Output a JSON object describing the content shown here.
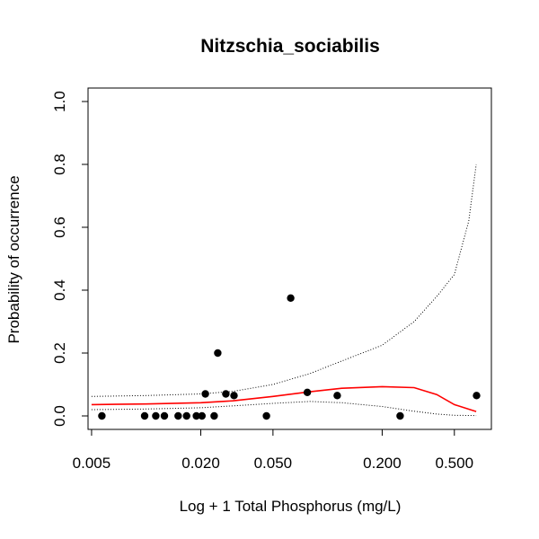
{
  "chart_data": {
    "type": "scatter",
    "title": "Nitzschia_sociabilis",
    "xlabel": "Log + 1 Total Phosphorus (mg/L)",
    "ylabel": "Probability of occurrence",
    "x_scale": "log",
    "xlim": [
      0.005,
      0.8
    ],
    "ylim": [
      0,
      1
    ],
    "x_ticks": [
      {
        "value": 0.005,
        "label": "0.005"
      },
      {
        "value": 0.02,
        "label": "0.020"
      },
      {
        "value": 0.05,
        "label": "0.050"
      },
      {
        "value": 0.2,
        "label": "0.200"
      },
      {
        "value": 0.5,
        "label": "0.500"
      }
    ],
    "y_ticks": [
      {
        "value": 0,
        "label": "0.0"
      },
      {
        "value": 0.2,
        "label": "0.2"
      },
      {
        "value": 0.4,
        "label": "0.4"
      },
      {
        "value": 0.6,
        "label": "0.6"
      },
      {
        "value": 0.8,
        "label": "0.8"
      },
      {
        "value": 1.0,
        "label": "1.0"
      }
    ],
    "grid": false,
    "colors": {
      "fit": "#ff0000",
      "points": "#000000",
      "bounds": "#000000"
    },
    "points": [
      {
        "x": 0.0057,
        "y": 0
      },
      {
        "x": 0.0098,
        "y": 0
      },
      {
        "x": 0.0113,
        "y": 0
      },
      {
        "x": 0.0126,
        "y": 0
      },
      {
        "x": 0.015,
        "y": 0
      },
      {
        "x": 0.0167,
        "y": 0
      },
      {
        "x": 0.0189,
        "y": 0
      },
      {
        "x": 0.0203,
        "y": 0
      },
      {
        "x": 0.0237,
        "y": 0
      },
      {
        "x": 0.046,
        "y": 0
      },
      {
        "x": 0.251,
        "y": 0
      },
      {
        "x": 0.0212,
        "y": 0.07
      },
      {
        "x": 0.0248,
        "y": 0.2
      },
      {
        "x": 0.0275,
        "y": 0.07
      },
      {
        "x": 0.0305,
        "y": 0.065
      },
      {
        "x": 0.0626,
        "y": 0.375
      },
      {
        "x": 0.0773,
        "y": 0.075
      },
      {
        "x": 0.113,
        "y": 0.065
      },
      {
        "x": 0.663,
        "y": 0.065
      }
    ],
    "series": [
      {
        "role": "fit",
        "x": [
          0.005,
          0.01,
          0.02,
          0.03,
          0.05,
          0.08,
          0.12,
          0.2,
          0.3,
          0.4,
          0.5,
          0.66
        ],
        "y": [
          0.036,
          0.038,
          0.042,
          0.048,
          0.062,
          0.077,
          0.088,
          0.093,
          0.09,
          0.068,
          0.036,
          0.014
        ]
      },
      {
        "role": "upper-bound",
        "x": [
          0.005,
          0.01,
          0.02,
          0.03,
          0.05,
          0.08,
          0.12,
          0.2,
          0.3,
          0.4,
          0.5,
          0.6,
          0.66
        ],
        "y": [
          0.062,
          0.065,
          0.07,
          0.078,
          0.1,
          0.135,
          0.175,
          0.225,
          0.3,
          0.38,
          0.45,
          0.62,
          0.8
        ]
      },
      {
        "role": "lower-bound",
        "x": [
          0.005,
          0.01,
          0.02,
          0.03,
          0.05,
          0.08,
          0.12,
          0.2,
          0.3,
          0.4,
          0.5,
          0.66
        ],
        "y": [
          0.02,
          0.022,
          0.026,
          0.032,
          0.04,
          0.046,
          0.042,
          0.03,
          0.015,
          0.006,
          0.002,
          0.001
        ]
      }
    ]
  }
}
